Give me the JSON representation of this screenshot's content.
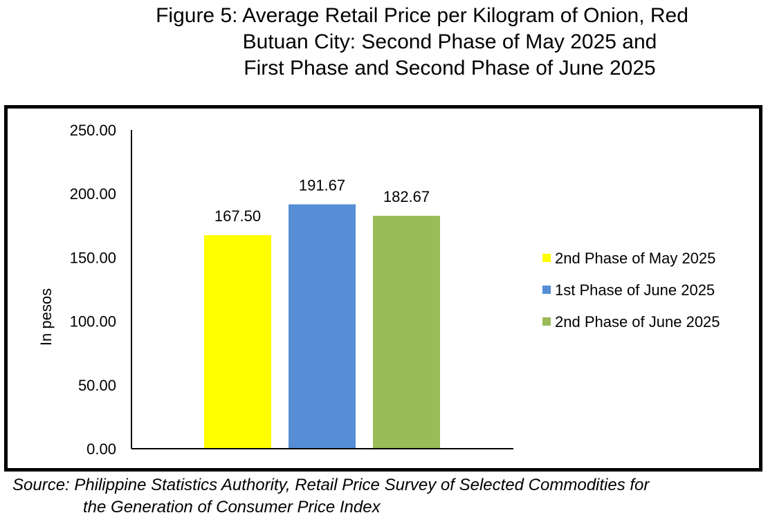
{
  "figure": {
    "title_lines": [
      "Figure 5: Average Retail Price per Kilogram of Onion, Red",
      "Butuan City: Second Phase of May 2025 and",
      "First Phase and Second Phase of June 2025"
    ],
    "source_lines": [
      "Source: Philippine Statistics Authority, Retail Price Survey of Selected Commodities for",
      "the Generation of Consumer Price Index"
    ]
  },
  "chart_data": {
    "type": "bar",
    "title": "Figure 5: Average Retail Price per Kilogram of Onion, Red Butuan City: Second Phase of May 2025 and First Phase and Second Phase of June 2025",
    "xlabel": "",
    "ylabel": "In pesos",
    "ylim": [
      0,
      250
    ],
    "y_ticks": [
      "0.00",
      "50.00",
      "100.00",
      "150.00",
      "200.00",
      "250.00"
    ],
    "y_tick_values": [
      0,
      50,
      100,
      150,
      200,
      250
    ],
    "grid": false,
    "legend_position": "right",
    "series": [
      {
        "name": "2nd Phase of May 2025",
        "values": [
          167.5
        ],
        "label": "167.50",
        "color": "#FFFF00"
      },
      {
        "name": "1st Phase of June 2025",
        "values": [
          191.67
        ],
        "label": "191.67",
        "color": "#558ED5"
      },
      {
        "name": "2nd Phase of June 2025",
        "values": [
          182.67
        ],
        "label": "182.67",
        "color": "#9BBB59"
      }
    ]
  }
}
